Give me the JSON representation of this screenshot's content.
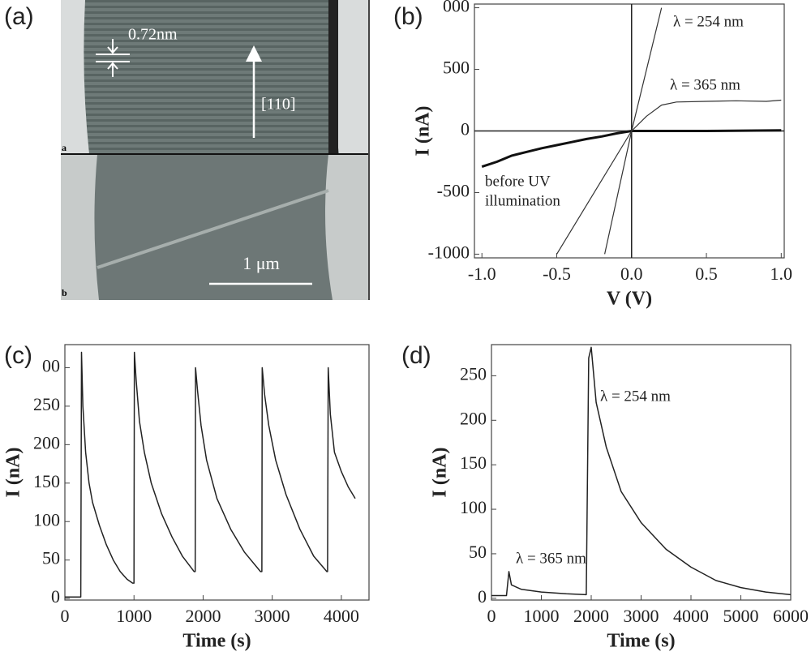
{
  "panel_a": {
    "panel_label": "(a)",
    "spacing": "0.72nm",
    "direction": "[110]",
    "top_tag": "a",
    "bottom_tag": "b",
    "scale_bar": "1 μm"
  },
  "chart_data": [
    {
      "type": "line",
      "panel_label": "(b)",
      "xlabel": "V (V)",
      "ylabel": "I (nA)",
      "xlim": [
        -1.05,
        1.02
      ],
      "ylim": [
        -1030,
        1030
      ],
      "xticks": [
        {
          "value": -1,
          "label": "-1.0"
        },
        -0.5,
        {
          "value": 0,
          "label": "0.0"
        },
        0.5,
        {
          "value": 1,
          "label": "1.0"
        }
      ],
      "yticks": [
        {
          "value": 1000,
          "label": "000"
        },
        500,
        0,
        -500,
        -1000
      ],
      "annotations": [
        "λ = 254 nm",
        "λ = 365 nm",
        "before UV",
        "illumination"
      ],
      "series": [
        {
          "color": "#111111",
          "width": 3,
          "x": [
            -1,
            -0.9,
            -0.8,
            -0.7,
            -0.6,
            -0.5,
            -0.4,
            -0.3,
            -0.2,
            -0.1,
            0,
            0.5,
            1
          ],
          "values": [
            -290,
            -250,
            -200,
            -170,
            -140,
            -115,
            -90,
            -65,
            -45,
            -20,
            0,
            0,
            5
          ]
        },
        {
          "color": "#333333",
          "width": 1.2,
          "x": [
            -0.5,
            0,
            0.1,
            0.2,
            0.3,
            0.5,
            0.7,
            0.9,
            1
          ],
          "values": [
            -1000,
            0,
            120,
            210,
            235,
            240,
            245,
            240,
            250
          ]
        },
        {
          "color": "#333333",
          "width": 1.2,
          "x": [
            -0.18,
            0,
            0.2
          ],
          "values": [
            -1000,
            0,
            1000
          ]
        }
      ]
    },
    {
      "type": "line",
      "panel_label": "(c)",
      "xlabel": "Time (s)",
      "ylabel": "I (nA)",
      "xlim": [
        0,
        4400
      ],
      "ylim": [
        -2,
        330
      ],
      "xticks": [
        0,
        1000,
        2000,
        3000,
        4000
      ],
      "yticks": [
        0,
        50,
        100,
        150,
        200,
        250,
        {
          "value": 300,
          "label": "00"
        }
      ],
      "annotations": [],
      "series": [
        {
          "color": "#222222",
          "width": 1.5,
          "x": [
            0,
            230,
            240,
            260,
            300,
            350,
            400,
            500,
            600,
            700,
            800,
            900,
            980,
            1000,
            1005,
            1030,
            1080,
            1150,
            1250,
            1400,
            1550,
            1700,
            1870,
            1885,
            1890,
            1920,
            1970,
            2050,
            2200,
            2400,
            2600,
            2830,
            2850,
            2855,
            2890,
            2950,
            3050,
            3200,
            3400,
            3600,
            3790,
            3800,
            3810,
            3840,
            3900,
            4000,
            4100,
            4200
          ],
          "values": [
            2,
            2,
            320,
            250,
            190,
            150,
            125,
            95,
            70,
            50,
            35,
            25,
            20,
            20,
            320,
            285,
            230,
            190,
            150,
            110,
            80,
            55,
            35,
            35,
            300,
            270,
            225,
            180,
            130,
            90,
            60,
            35,
            35,
            300,
            265,
            225,
            180,
            135,
            90,
            55,
            35,
            35,
            300,
            240,
            190,
            165,
            145,
            130
          ]
        }
      ]
    },
    {
      "type": "line",
      "panel_label": "(d)",
      "xlabel": "Time (s)",
      "ylabel": "I (nA)",
      "xlim": [
        0,
        6000
      ],
      "ylim": [
        -2,
        285
      ],
      "xticks": [
        0,
        1000,
        2000,
        3000,
        4000,
        5000,
        6000
      ],
      "yticks": [
        0,
        50,
        100,
        150,
        200,
        250
      ],
      "annotations": [
        "λ = 254 nm",
        "λ = 365 nm"
      ],
      "series": [
        {
          "color": "#222222",
          "width": 1.5,
          "x": [
            0,
            300,
            350,
            400,
            600,
            1000,
            1500,
            1900,
            1950,
            2000,
            2100,
            2300,
            2600,
            3000,
            3500,
            4000,
            4500,
            5000,
            5500,
            6000
          ],
          "values": [
            3,
            3,
            30,
            15,
            10,
            7,
            5,
            4,
            270,
            282,
            220,
            170,
            120,
            85,
            55,
            35,
            20,
            12,
            7,
            4
          ]
        }
      ]
    }
  ]
}
